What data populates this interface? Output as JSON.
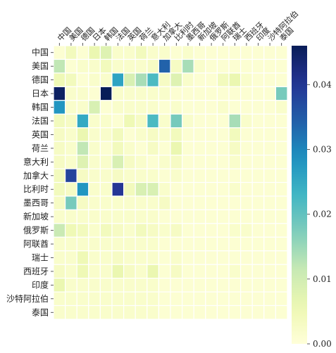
{
  "chart_data": {
    "type": "heatmap",
    "title": "",
    "xlabel": "",
    "ylabel": "",
    "countries": [
      "中国",
      "美国",
      "德国",
      "日本",
      "韩国",
      "法国",
      "英国",
      "荷兰",
      "意大利",
      "加拿大",
      "比利时",
      "墨西哥",
      "新加坡",
      "俄罗斯",
      "阿联酋",
      "瑞士",
      "西班牙",
      "印度",
      "沙特阿拉伯",
      "泰国"
    ],
    "grid": true,
    "values": [
      [
        0.001,
        0.004,
        0.001,
        0.006,
        0.008,
        0.002,
        0.002,
        0.004,
        0.002,
        0.002,
        0.001,
        0.002,
        0.001,
        0.001,
        0.001,
        0.001,
        0.001,
        0.001,
        0.001,
        0.001
      ],
      [
        0.012,
        0.001,
        0.002,
        0.002,
        0.004,
        0.002,
        0.002,
        0.002,
        0.003,
        0.034,
        0.003,
        0.014,
        0.002,
        0.001,
        0.001,
        0.001,
        0.001,
        0.001,
        0.001,
        0.001
      ],
      [
        0.005,
        0.004,
        0.001,
        0.002,
        0.002,
        0.026,
        0.009,
        0.014,
        0.022,
        0.003,
        0.008,
        0.002,
        0.001,
        0.001,
        0.004,
        0.006,
        0.002,
        0.001,
        0.001,
        0.001
      ],
      [
        0.045,
        0.002,
        0.002,
        0.001,
        0.046,
        0.002,
        0.002,
        0.002,
        0.002,
        0.002,
        0.001,
        0.001,
        0.001,
        0.001,
        0.001,
        0.001,
        0.001,
        0.001,
        0.001,
        0.018
      ],
      [
        0.028,
        0.002,
        0.002,
        0.009,
        0.001,
        0.002,
        0.002,
        0.002,
        0.002,
        0.001,
        0.002,
        0.001,
        0.001,
        0.001,
        0.002,
        0.001,
        0.001,
        0.001,
        0.001,
        0.002
      ],
      [
        0.004,
        0.003,
        0.025,
        0.002,
        0.002,
        0.001,
        0.005,
        0.003,
        0.022,
        0.002,
        0.018,
        0.002,
        0.001,
        0.001,
        0.001,
        0.014,
        0.002,
        0.001,
        0.001,
        0.001
      ],
      [
        0.003,
        0.002,
        0.006,
        0.002,
        0.002,
        0.004,
        0.001,
        0.002,
        0.003,
        0.002,
        0.004,
        0.001,
        0.001,
        0.001,
        0.001,
        0.004,
        0.001,
        0.001,
        0.001,
        0.001
      ],
      [
        0.003,
        0.002,
        0.012,
        0.002,
        0.001,
        0.004,
        0.002,
        0.001,
        0.003,
        0.001,
        0.006,
        0.001,
        0.001,
        0.001,
        0.001,
        0.003,
        0.001,
        0.001,
        0.001,
        0.001
      ],
      [
        0.003,
        0.002,
        0.008,
        0.002,
        0.002,
        0.009,
        0.003,
        0.002,
        0.001,
        0.002,
        0.003,
        0.001,
        0.001,
        0.001,
        0.001,
        0.002,
        0.001,
        0.001,
        0.001,
        0.001
      ],
      [
        0.004,
        0.038,
        0.003,
        0.002,
        0.002,
        0.003,
        0.002,
        0.002,
        0.002,
        0.001,
        0.002,
        0.001,
        0.001,
        0.001,
        0.001,
        0.001,
        0.001,
        0.001,
        0.001,
        0.001
      ],
      [
        0.004,
        0.003,
        0.028,
        0.002,
        0.002,
        0.04,
        0.004,
        0.009,
        0.009,
        0.002,
        0.001,
        0.001,
        0.001,
        0.001,
        0.001,
        0.002,
        0.001,
        0.001,
        0.001,
        0.001
      ],
      [
        0.003,
        0.018,
        0.003,
        0.002,
        0.002,
        0.002,
        0.002,
        0.002,
        0.002,
        0.003,
        0.001,
        0.001,
        0.001,
        0.001,
        0.001,
        0.001,
        0.001,
        0.001,
        0.001,
        0.001
      ],
      [
        0.002,
        0.002,
        0.002,
        0.002,
        0.002,
        0.002,
        0.002,
        0.002,
        0.002,
        0.001,
        0.001,
        0.001,
        0.001,
        0.001,
        0.001,
        0.001,
        0.001,
        0.001,
        0.001,
        0.001
      ],
      [
        0.011,
        0.005,
        0.004,
        0.002,
        0.004,
        0.003,
        0.002,
        0.004,
        0.003,
        0.002,
        0.003,
        0.001,
        0.001,
        0.001,
        0.001,
        0.002,
        0.002,
        0.001,
        0.001,
        0.001
      ],
      [
        0.002,
        0.002,
        0.002,
        0.002,
        0.002,
        0.002,
        0.002,
        0.002,
        0.002,
        0.001,
        0.001,
        0.001,
        0.001,
        0.001,
        0.001,
        0.001,
        0.001,
        0.001,
        0.001,
        0.001
      ],
      [
        0.002,
        0.002,
        0.005,
        0.002,
        0.002,
        0.003,
        0.002,
        0.002,
        0.002,
        0.001,
        0.002,
        0.001,
        0.001,
        0.001,
        0.001,
        0.001,
        0.001,
        0.001,
        0.001,
        0.001
      ],
      [
        0.003,
        0.002,
        0.005,
        0.002,
        0.002,
        0.006,
        0.003,
        0.002,
        0.006,
        0.001,
        0.003,
        0.001,
        0.001,
        0.001,
        0.001,
        0.002,
        0.001,
        0.001,
        0.001,
        0.001
      ],
      [
        0.006,
        0.002,
        0.002,
        0.002,
        0.002,
        0.002,
        0.002,
        0.002,
        0.002,
        0.001,
        0.001,
        0.001,
        0.001,
        0.001,
        0.001,
        0.001,
        0.001,
        0.001,
        0.001,
        0.001
      ],
      [
        0.002,
        0.002,
        0.002,
        0.002,
        0.002,
        0.002,
        0.002,
        0.002,
        0.002,
        0.001,
        0.001,
        0.001,
        0.001,
        0.001,
        0.001,
        0.001,
        0.001,
        0.001,
        0.001,
        0.001
      ],
      [
        0.002,
        0.002,
        0.002,
        0.002,
        0.002,
        0.002,
        0.002,
        0.002,
        0.002,
        0.001,
        0.001,
        0.001,
        0.001,
        0.001,
        0.001,
        0.001,
        0.001,
        0.001,
        0.001,
        0.001
      ]
    ],
    "zlim": [
      0.0,
      0.046
    ],
    "colorbar": {
      "colormap": "YlGnBu",
      "ticks": [
        0.0,
        0.01,
        0.02,
        0.03,
        0.04
      ],
      "tick_labels": [
        "0.00",
        "0.01",
        "0.02",
        "0.03",
        "0.04"
      ],
      "placement": "right"
    }
  }
}
